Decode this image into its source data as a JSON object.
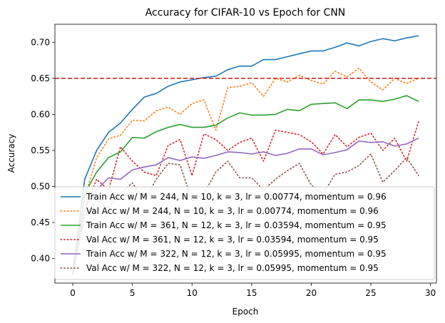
{
  "chart_data": {
    "type": "line",
    "title": "Accuracy for CIFAR-10 vs Epoch for CNN",
    "xlabel": "Epoch",
    "ylabel": "Accuracy",
    "xlim": [
      -1.5,
      30.5
    ],
    "ylim": [
      0.366,
      0.725
    ],
    "xticks": [
      0,
      5,
      10,
      15,
      20,
      25,
      30
    ],
    "yticks": [
      0.4,
      0.45,
      0.5,
      0.55,
      0.6,
      0.65,
      0.7
    ],
    "ytick_labels": [
      "0.40",
      "0.45",
      "0.50",
      "0.55",
      "0.60",
      "0.65",
      "0.70"
    ],
    "grid": false,
    "legend_position": "lower-right",
    "reference_line": {
      "y": 0.65,
      "color": "#d62728",
      "style": "dashed"
    },
    "x": [
      0,
      1,
      2,
      3,
      4,
      5,
      6,
      7,
      8,
      9,
      10,
      11,
      12,
      13,
      14,
      15,
      16,
      17,
      18,
      19,
      20,
      21,
      22,
      23,
      24,
      25,
      26,
      27,
      28,
      29
    ],
    "series": [
      {
        "name": "Train Acc w/ M = 244, N = 10, k = 3, lr = 0.00774, momentum = 0.96",
        "color": "#1f77b4",
        "style": "solid",
        "values": [
          0.383,
          0.51,
          0.55,
          0.575,
          0.588,
          0.607,
          0.624,
          0.629,
          0.639,
          0.645,
          0.648,
          0.651,
          0.653,
          0.662,
          0.667,
          0.667,
          0.676,
          0.676,
          0.68,
          0.684,
          0.688,
          0.688,
          0.693,
          0.699,
          0.695,
          0.701,
          0.705,
          0.702,
          0.706,
          0.709
        ]
      },
      {
        "name": "Val Acc w/ M = 244, N = 10, k = 3, lr = 0.00774, momentum = 0.96",
        "color": "#ff7f0e",
        "style": "dotted",
        "values": [
          0.378,
          0.485,
          0.54,
          0.566,
          0.571,
          0.592,
          0.591,
          0.605,
          0.61,
          0.6,
          0.615,
          0.62,
          0.578,
          0.637,
          0.639,
          0.644,
          0.625,
          0.65,
          0.645,
          0.654,
          0.647,
          0.642,
          0.66,
          0.652,
          0.664,
          0.645,
          0.634,
          0.65,
          0.643,
          0.65
        ]
      },
      {
        "name": "Train Acc w/ M = 361, N = 12, k = 3, lr = 0.03594, momentum = 0.95",
        "color": "#2ca02c",
        "style": "solid",
        "values": [
          0.378,
          0.49,
          0.52,
          0.54,
          0.548,
          0.568,
          0.567,
          0.576,
          0.582,
          0.586,
          0.582,
          0.582,
          0.585,
          0.595,
          0.602,
          0.599,
          0.599,
          0.6,
          0.607,
          0.605,
          0.614,
          0.615,
          0.616,
          0.608,
          0.62,
          0.62,
          0.618,
          0.621,
          0.626,
          0.618
        ]
      },
      {
        "name": "Val Acc w/ M = 361, N = 12, k = 3, lr = 0.03594, momentum = 0.95",
        "color": "#d62728",
        "style": "dotted",
        "values": [
          0.378,
          0.47,
          0.51,
          0.495,
          0.555,
          0.535,
          0.52,
          0.515,
          0.557,
          0.565,
          0.515,
          0.573,
          0.565,
          0.55,
          0.561,
          0.567,
          0.535,
          0.578,
          0.575,
          0.572,
          0.562,
          0.545,
          0.572,
          0.555,
          0.568,
          0.574,
          0.55,
          0.567,
          0.535,
          0.59
        ]
      },
      {
        "name": "Train Acc w/ M = 322, N = 12, k = 3, lr = 0.05995, momentum = 0.95",
        "color": "#9467bd",
        "style": "solid",
        "values": [
          0.378,
          0.47,
          0.495,
          0.512,
          0.51,
          0.523,
          0.527,
          0.53,
          0.54,
          0.536,
          0.541,
          0.539,
          0.543,
          0.548,
          0.547,
          0.545,
          0.548,
          0.543,
          0.546,
          0.552,
          0.552,
          0.544,
          0.547,
          0.551,
          0.563,
          0.561,
          0.562,
          0.556,
          0.559,
          0.567
        ]
      },
      {
        "name": "Val Acc w/ M = 322, N = 12, k = 3, lr = 0.05995, momentum = 0.95",
        "color": "#8c564b",
        "style": "dotted",
        "values": [
          0.378,
          0.46,
          0.48,
          0.47,
          0.49,
          0.505,
          0.48,
          0.51,
          0.532,
          0.53,
          0.48,
          0.49,
          0.52,
          0.535,
          0.512,
          0.512,
          0.495,
          0.51,
          0.522,
          0.532,
          0.502,
          0.49,
          0.517,
          0.52,
          0.529,
          0.545,
          0.506,
          0.522,
          0.54,
          0.515
        ]
      }
    ]
  }
}
